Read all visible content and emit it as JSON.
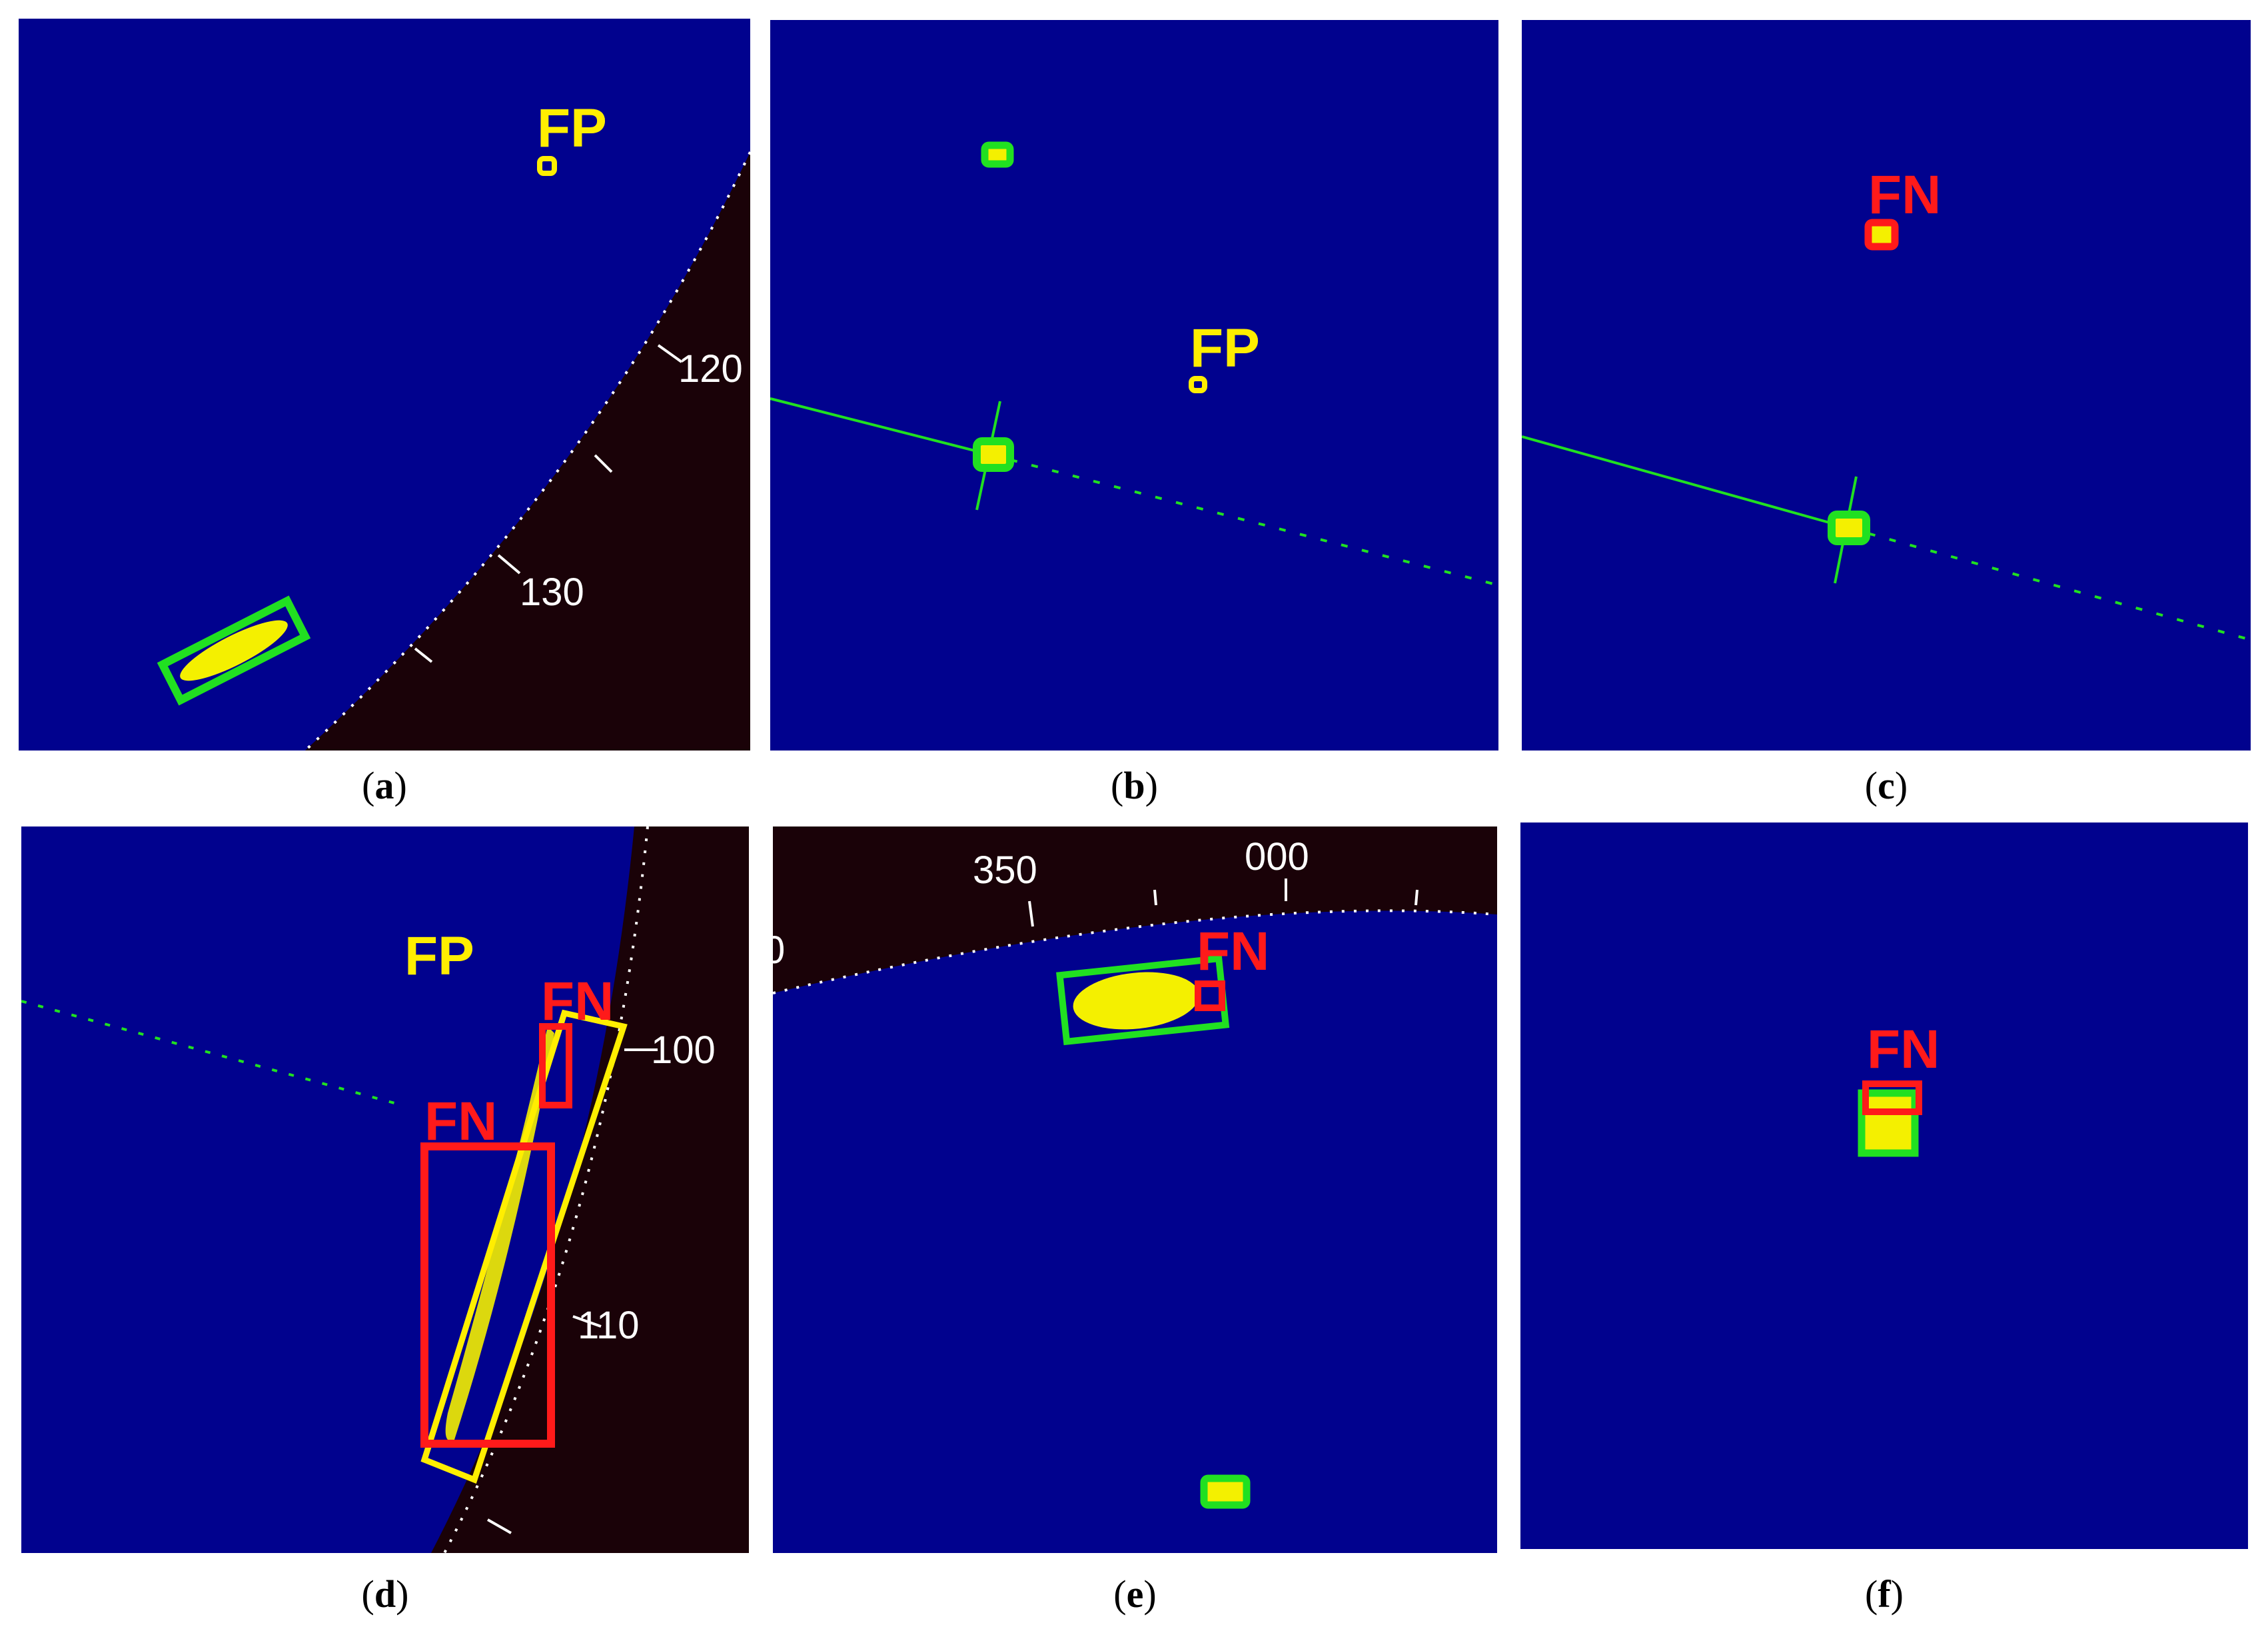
{
  "colors": {
    "radar_background": "#01028e",
    "land_dark": "#1a0208",
    "true_positive_box": "#21e021",
    "false_negative_box": "#ff1a1a",
    "false_positive": "#ffee00",
    "echo": "#f4f000",
    "scale_text": "#ffffff"
  },
  "panels": [
    {
      "id": "a",
      "caption_letter": "a",
      "labels": [
        "FP"
      ],
      "scale_ticks": [
        "120",
        "130"
      ]
    },
    {
      "id": "b",
      "caption_letter": "b",
      "labels": [
        "FP"
      ],
      "scale_ticks": []
    },
    {
      "id": "c",
      "caption_letter": "c",
      "labels": [
        "FN"
      ],
      "scale_ticks": []
    },
    {
      "id": "d",
      "caption_letter": "d",
      "labels": [
        "FP",
        "FN",
        "FN"
      ],
      "scale_ticks": [
        "100",
        "110"
      ]
    },
    {
      "id": "e",
      "caption_letter": "e",
      "labels": [
        "FN"
      ],
      "scale_ticks": [
        "350",
        "000",
        "0"
      ]
    },
    {
      "id": "f",
      "caption_letter": "f",
      "labels": [
        "FN"
      ],
      "scale_ticks": []
    }
  ]
}
